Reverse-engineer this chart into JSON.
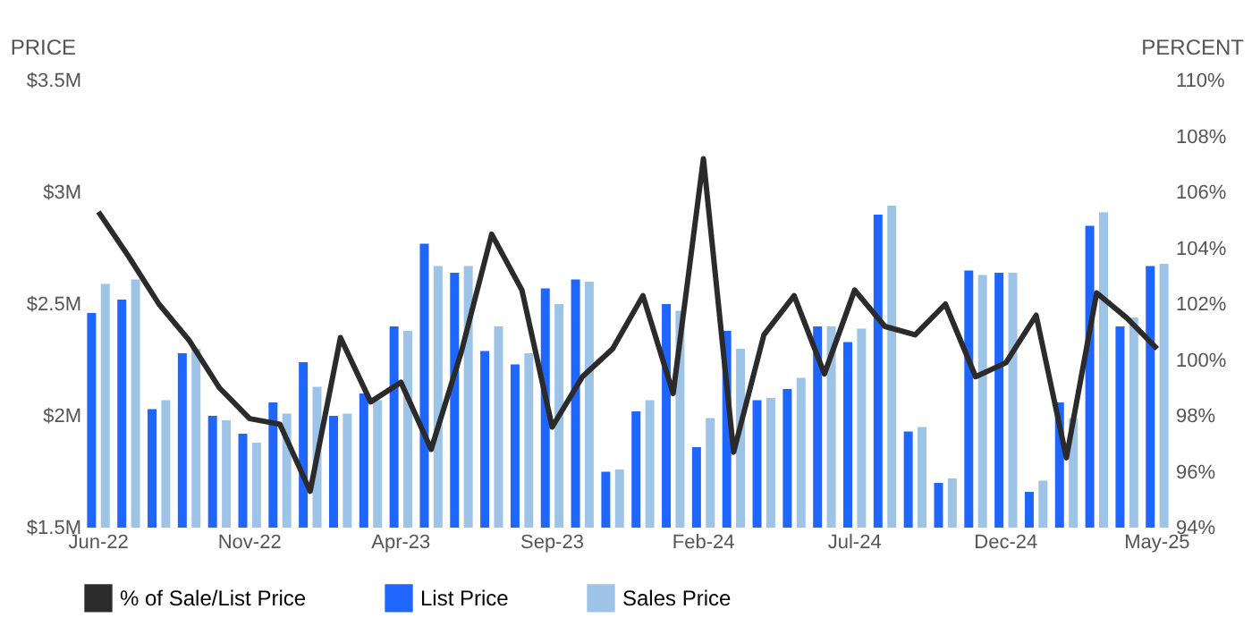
{
  "chart_data": {
    "type": "bar",
    "ylabel": "PRICE",
    "y2label": "PERCENT",
    "categories": [
      "Jun-22",
      null,
      null,
      null,
      null,
      "Nov-22",
      null,
      null,
      null,
      null,
      "Apr-23",
      null,
      null,
      null,
      null,
      "Sep-23",
      null,
      null,
      null,
      null,
      "Feb-24",
      null,
      null,
      null,
      null,
      "Jul-24",
      null,
      null,
      null,
      null,
      "Dec-24",
      null,
      null,
      null,
      null,
      "May-25"
    ],
    "series": [
      {
        "name": "% of Sale/List Price",
        "type": "line",
        "axis": "y2",
        "color": "#2b2b2b",
        "values": [
          105.3,
          103.7,
          102.0,
          100.7,
          99.0,
          97.9,
          97.7,
          95.3,
          100.8,
          98.5,
          99.2,
          96.8,
          100.3,
          104.5,
          102.5,
          97.6,
          99.4,
          100.4,
          102.3,
          98.8,
          107.2,
          96.7,
          100.9,
          102.3,
          99.5,
          102.5,
          101.2,
          100.9,
          102.0,
          99.4,
          99.9,
          101.6,
          96.5,
          102.4,
          101.5,
          100.4
        ]
      },
      {
        "name": "List Price",
        "color": "#1f66ff",
        "values": [
          2.46,
          2.52,
          2.03,
          2.28,
          2.0,
          1.92,
          2.06,
          2.24,
          2.0,
          2.1,
          2.4,
          2.77,
          2.64,
          2.29,
          2.23,
          2.57,
          2.61,
          1.75,
          2.02,
          2.5,
          1.86,
          2.38,
          2.07,
          2.12,
          2.4,
          2.33,
          2.9,
          1.93,
          1.7,
          2.65,
          2.64,
          1.66,
          2.06,
          2.85,
          2.4,
          2.67
        ]
      },
      {
        "name": "Sales Price",
        "color": "#9dc3e6",
        "values": [
          2.59,
          2.61,
          2.07,
          2.3,
          1.98,
          1.88,
          2.01,
          2.13,
          2.01,
          2.07,
          2.38,
          2.67,
          2.67,
          2.4,
          2.28,
          2.5,
          2.6,
          1.76,
          2.07,
          2.47,
          1.99,
          2.3,
          2.08,
          2.17,
          2.4,
          2.39,
          2.94,
          1.95,
          1.72,
          2.63,
          2.64,
          1.71,
          1.99,
          2.91,
          2.44,
          2.68
        ]
      }
    ],
    "ylim": [
      1.5,
      3.5
    ],
    "yticks": [
      {
        "value": 1.5,
        "label": "$1.5M"
      },
      {
        "value": 2,
        "label": "$2M"
      },
      {
        "value": 2.5,
        "label": "$2.5M"
      },
      {
        "value": 3,
        "label": "$3M"
      },
      {
        "value": 3.5,
        "label": "$3.5M"
      }
    ],
    "y2lim": [
      94,
      110
    ],
    "y2ticks": [
      {
        "value": 94,
        "label": "94%"
      },
      {
        "value": 96,
        "label": "96%"
      },
      {
        "value": 98,
        "label": "98%"
      },
      {
        "value": 100,
        "label": "100%"
      },
      {
        "value": 102,
        "label": "102%"
      },
      {
        "value": 104,
        "label": "104%"
      },
      {
        "value": 106,
        "label": "106%"
      },
      {
        "value": 108,
        "label": "108%"
      },
      {
        "value": 110,
        "label": "110%"
      }
    ],
    "legend": "bottom"
  }
}
